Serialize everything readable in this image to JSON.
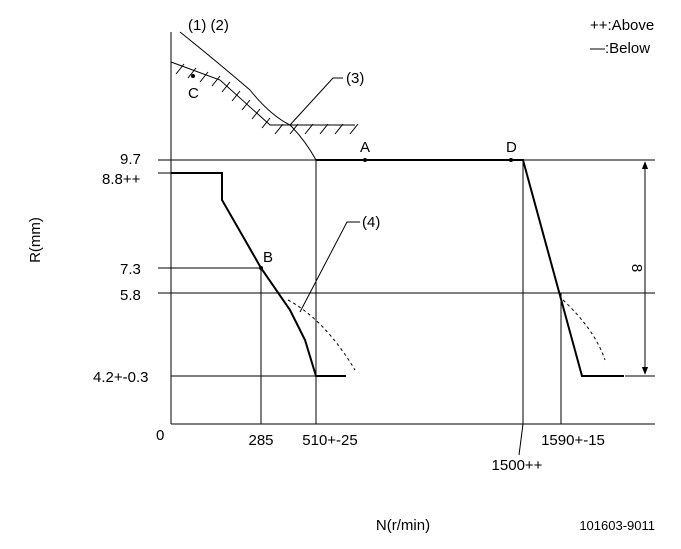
{
  "header": {
    "notes": "(1) (2)",
    "legend_above": "++:Above",
    "legend_below": "—:Below"
  },
  "callouts": {
    "c3": "(3)",
    "c4": "(4)"
  },
  "points": {
    "c": "C",
    "a": "A",
    "d": "D",
    "b": "B"
  },
  "y_axis": {
    "label": "R(mm)",
    "t97": "9.7",
    "t88": "8.8++",
    "t73": "7.3",
    "t58": "5.8",
    "t42": "4.2+-0.3",
    "origin": "0"
  },
  "x_axis": {
    "label": "N(r/min)",
    "t285": "285",
    "t510": "510+-25",
    "t1590": "1590+-15",
    "t1500": "1500++"
  },
  "dimension": "8",
  "footer": {
    "code": "101603-9011"
  }
}
